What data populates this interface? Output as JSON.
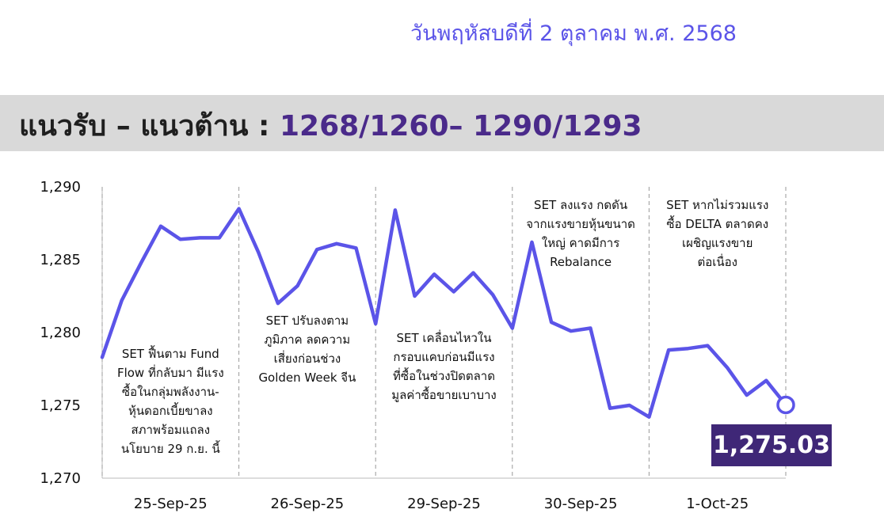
{
  "header": {
    "date": "วันพฤหัสบดีที่ 2 ตุลาคม พ.ศ. 2568",
    "support_resistance_label": "แนวรับ – แนวต้าน : ",
    "support_resistance_levels": "1268/1260– 1290/1293"
  },
  "colors": {
    "line": "#5b54e8",
    "banner_bg": "#d9d9d9",
    "value_box_bg": "#3f2777",
    "title_accent": "#4a2a8a"
  },
  "chart_data": {
    "type": "line",
    "title": "",
    "xlabel": "",
    "ylabel": "",
    "ylim": [
      1270,
      1290
    ],
    "yticks": [
      "1,290",
      "1,285",
      "1,280",
      "1,275",
      "1,270"
    ],
    "grid": false,
    "sessions": [
      "25-Sep-25",
      "26-Sep-25",
      "29-Sep-25",
      "30-Sep-25",
      "1-Oct-25"
    ],
    "series": [
      {
        "values": [
          1278.3,
          1282.2,
          1284.8,
          1287.3,
          1286.4,
          1286.5,
          1286.5,
          1288.5,
          1285.5,
          1282.0,
          1283.2,
          1285.7,
          1286.1,
          1285.8,
          1280.6,
          1288.4,
          1282.5,
          1284.0,
          1282.8,
          1284.1,
          1282.6,
          1280.3,
          1286.2,
          1280.7,
          1280.1,
          1280.3,
          1274.8,
          1275.0,
          1274.2,
          1278.8,
          1278.9,
          1279.1,
          1277.6,
          1275.7,
          1276.7,
          1275.03
        ]
      }
    ],
    "last_value": "1,275.03",
    "annotations": [
      [
        "SET ฟื้นตาม Fund",
        "Flow ที่กลับมา มีแรง",
        "ซื้อในกลุ่มพลังงาน-",
        "หุ้นดอกเบี้ยขาลง",
        "สภาพร้อมแถลง",
        "นโยบาย 29 ก.ย. นี้"
      ],
      [
        "SET ปรับลงตาม",
        "ภูมิภาค ลดความ",
        "เสี่ยงก่อนช่วง",
        "Golden Week จีน"
      ],
      [
        "SET เคลื่อนไหวใน",
        "กรอบแคบก่อนมีแรง",
        "ที่ซื้อในช่วงปิดตลาด",
        "มูลค่าซื้อขายเบาบาง"
      ],
      [
        "SET ลงแรง กดดัน",
        "จากแรงขายหุ้นขนาด",
        "ใหญ่ คาดมีการ",
        "Rebalance"
      ],
      [
        "SET หากไม่รวมแรง",
        "ซื้อ DELTA ตลาดคง",
        "เผชิญแรงขาย",
        "ต่อเนื่อง"
      ]
    ]
  }
}
